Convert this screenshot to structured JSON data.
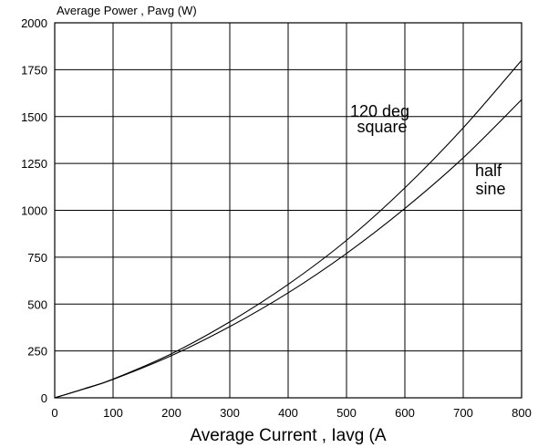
{
  "chart_data": {
    "type": "line",
    "ylabel": "Average Power , Pavg (W)",
    "xlabel": "Average Current , Iavg (A",
    "xlim": [
      0,
      800
    ],
    "ylim": [
      0,
      2000
    ],
    "x_ticks": [
      0,
      100,
      200,
      300,
      400,
      500,
      600,
      700,
      800
    ],
    "y_ticks": [
      0,
      250,
      500,
      750,
      1000,
      1250,
      1500,
      1750,
      2000
    ],
    "grid": true,
    "series": [
      {
        "x": [
          0,
          50,
          100,
          200,
          300,
          400,
          500,
          600,
          700,
          800
        ],
        "y": [
          0,
          48,
          100,
          235,
          405,
          605,
          840,
          1120,
          1440,
          1800
        ]
      },
      {
        "x": [
          0,
          50,
          100,
          200,
          300,
          400,
          500,
          600,
          700,
          800
        ],
        "y": [
          0,
          47,
          98,
          225,
          380,
          560,
          770,
          1010,
          1280,
          1590
        ]
      }
    ],
    "annotations": [
      {
        "id": "ann-120",
        "lines": [
          "120 deg",
          "square"
        ]
      },
      {
        "id": "ann-half",
        "lines": [
          "half",
          "sine"
        ]
      }
    ]
  }
}
